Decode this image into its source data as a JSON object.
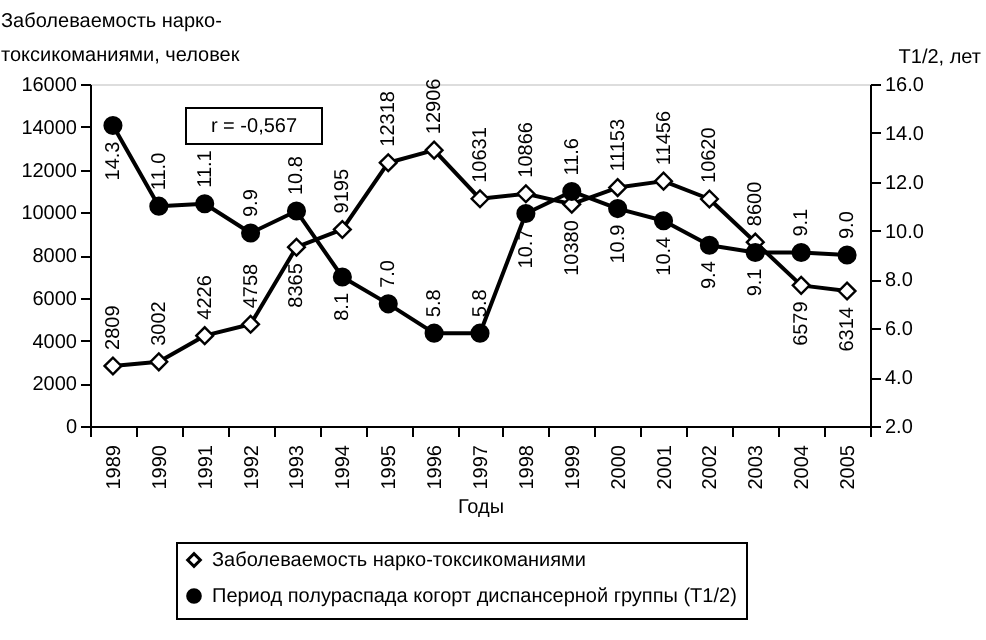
{
  "chart_data": {
    "type": "line",
    "ylabel": "Заболеваемость нарко-\nтоксикоманиями, человек",
    "y2label": "T1/2, лет",
    "xlabel": "Годы",
    "categories": [
      "1989",
      "1990",
      "1991",
      "1992",
      "1993",
      "1994",
      "1995",
      "1996",
      "1997",
      "1998",
      "1999",
      "2000",
      "2001",
      "2002",
      "2003",
      "2004",
      "2005"
    ],
    "series": [
      {
        "name": "Заболеваемость нарко-токсикоманиями",
        "color": "#000000",
        "marker": "diamond",
        "values": [
          2809,
          3002,
          4226,
          4758,
          8365,
          9195,
          12318,
          12906,
          10631,
          10866,
          10380,
          11153,
          11456,
          10620,
          8600,
          6579,
          6314
        ],
        "value_labels": [
          "2809",
          "3002",
          "4226",
          "4758",
          "8365",
          "9195",
          "12318",
          "12906",
          "10631",
          "10866",
          "10380",
          "11153",
          "11456",
          "10620",
          "8600",
          "6579",
          "6314"
        ]
      },
      {
        "name": "Период полураспада когорт диспансерной группы (T1/2)",
        "color": "#000000",
        "marker": "circle",
        "axis": "y2",
        "values": [
          14.3,
          11.0,
          11.1,
          9.9,
          10.8,
          8.1,
          7.0,
          5.8,
          5.8,
          10.7,
          11.6,
          10.9,
          10.4,
          9.4,
          9.1,
          9.1,
          9.0
        ],
        "value_labels": [
          "14.3",
          "11.0",
          "11.1",
          "9.9",
          "10.8",
          "8.1",
          "7.0",
          "5.8",
          "5.8",
          "10.7",
          "11.6",
          "10.9",
          "10.4",
          "9.4",
          "9.1",
          "9.1",
          "9.0"
        ]
      }
    ],
    "ylim": [
      0,
      16000
    ],
    "yticks": [
      0,
      2000,
      4000,
      6000,
      8000,
      10000,
      12000,
      14000,
      16000
    ],
    "y2lim": [
      2,
      16
    ],
    "y2ticks": [
      {
        "value": 2,
        "label": "2.0"
      },
      {
        "value": 4,
        "label": "4.0"
      },
      {
        "value": 6,
        "label": "6.0"
      },
      {
        "value": 8,
        "label": "8.0"
      },
      {
        "value": 10,
        "label": "10.0"
      },
      {
        "value": 12,
        "label": "12.0"
      },
      {
        "value": 14,
        "label": "14.0"
      },
      {
        "value": 16,
        "label": "16.0"
      }
    ],
    "annotations": [
      "r = -0,567"
    ],
    "legend": "bottom",
    "grid": false,
    "line_style": "solid"
  }
}
